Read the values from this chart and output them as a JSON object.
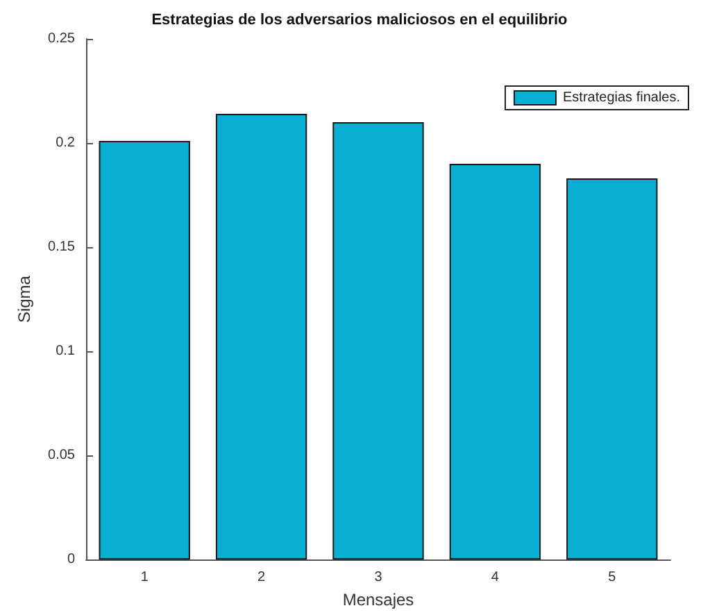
{
  "chart_data": {
    "type": "bar",
    "title": "Estrategias de los adversarios maliciosos en el equilibrio",
    "xlabel": "Mensajes",
    "ylabel": "Sigma",
    "categories": [
      "1",
      "2",
      "3",
      "4",
      "5"
    ],
    "series": [
      {
        "name": "Estrategias finales.",
        "color": "#0aaed1",
        "values": [
          0.201,
          0.214,
          0.21,
          0.19,
          0.183
        ]
      }
    ],
    "ylim": [
      0,
      0.25
    ],
    "yticks": [
      0,
      0.05,
      0.1,
      0.15,
      0.2,
      0.25
    ],
    "legend": "top right",
    "grid": false
  }
}
